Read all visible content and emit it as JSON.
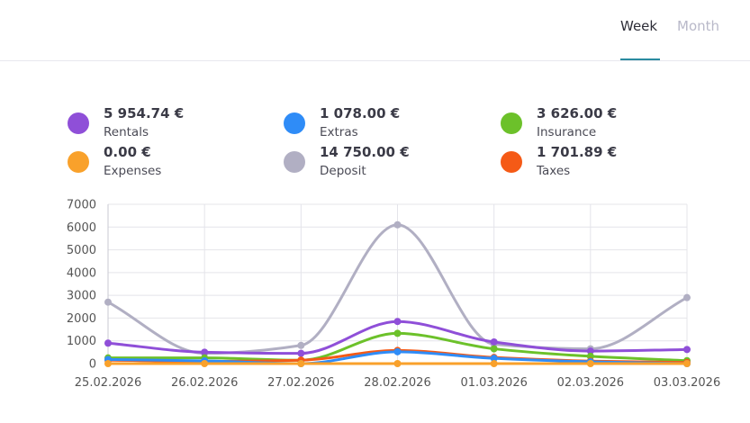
{
  "tabs": {
    "week": "Week",
    "month": "Month"
  },
  "legend": [
    {
      "value": "5 954.74 €",
      "label": "Rentals",
      "color": "#8f4fd8"
    },
    {
      "value": "1 078.00 €",
      "label": "Extras",
      "color": "#2f8cf7"
    },
    {
      "value": "3 626.00 €",
      "label": "Insurance",
      "color": "#6cc12a"
    },
    {
      "value": "0.00 €",
      "label": "Expenses",
      "color": "#f9a12b"
    },
    {
      "value": "14 750.00 €",
      "label": "Deposit",
      "color": "#b1afc3"
    },
    {
      "value": "1 701.89 €",
      "label": "Taxes",
      "color": "#f55a16"
    }
  ],
  "chart_data": {
    "type": "line",
    "categories": [
      "25.02.2026",
      "26.02.2026",
      "27.02.2026",
      "28.02.2026",
      "01.03.2026",
      "02.03.2026",
      "03.03.2026"
    ],
    "yticks": [
      0,
      1000,
      2000,
      3000,
      4000,
      5000,
      6000,
      7000
    ],
    "ylim": [
      0,
      7000
    ],
    "grid": true,
    "series": [
      {
        "name": "Deposit",
        "color": "#b1afc3",
        "values": [
          2700,
          450,
          800,
          6100,
          850,
          650,
          2900
        ]
      },
      {
        "name": "Rentals",
        "color": "#8f4fd8",
        "values": [
          900,
          500,
          450,
          1850,
          950,
          550,
          620
        ]
      },
      {
        "name": "Insurance",
        "color": "#6cc12a",
        "values": [
          250,
          250,
          150,
          1330,
          650,
          320,
          130
        ]
      },
      {
        "name": "Taxes",
        "color": "#f55a16",
        "values": [
          150,
          100,
          150,
          580,
          270,
          110,
          50
        ]
      },
      {
        "name": "Extras",
        "color": "#2f8cf7",
        "values": [
          180,
          120,
          0,
          520,
          230,
          80,
          0
        ]
      },
      {
        "name": "Expenses",
        "color": "#f9a12b",
        "values": [
          0,
          0,
          0,
          0,
          0,
          0,
          0
        ]
      }
    ]
  }
}
